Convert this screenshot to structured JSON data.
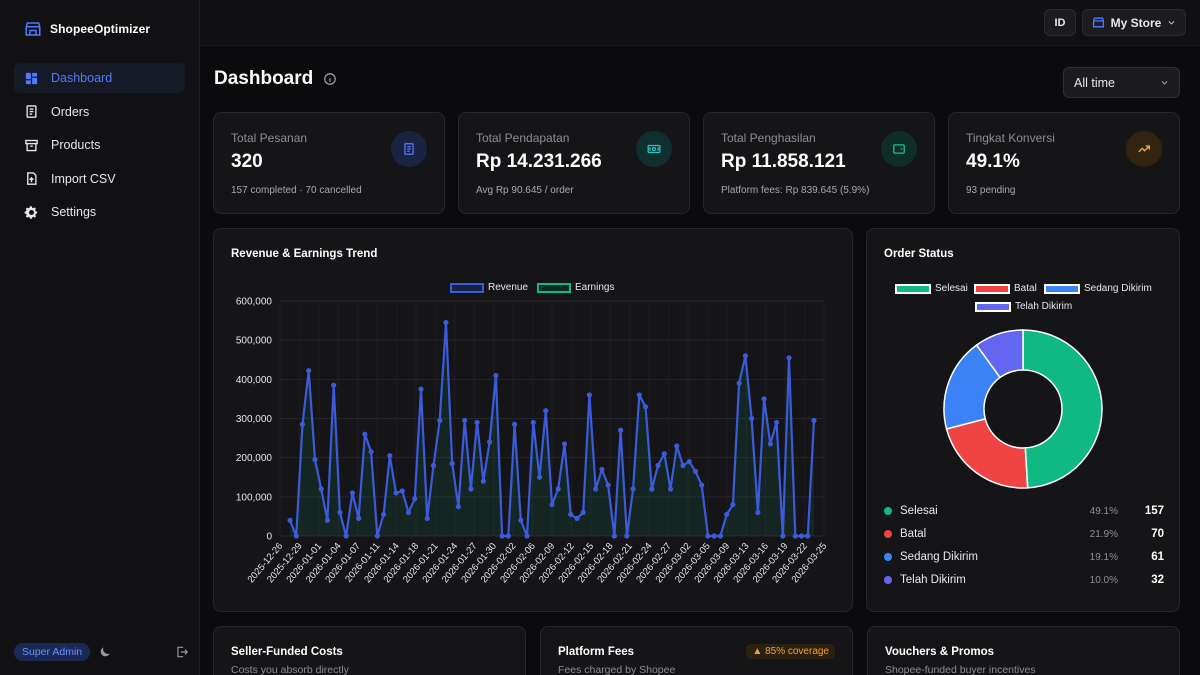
{
  "app": {
    "name": "ShopeeOptimizer"
  },
  "sidebar": {
    "items": [
      {
        "label": "Dashboard",
        "icon": "dashboard-icon",
        "active": true
      },
      {
        "label": "Orders",
        "icon": "orders-icon"
      },
      {
        "label": "Products",
        "icon": "products-icon"
      },
      {
        "label": "Import CSV",
        "icon": "import-icon"
      },
      {
        "label": "Settings",
        "icon": "gear-icon"
      }
    ],
    "role": "Super Admin"
  },
  "header": {
    "lang": "ID",
    "store": "My Store"
  },
  "page": {
    "title": "Dashboard",
    "range": "All time"
  },
  "stats": [
    {
      "label": "Total Pesanan",
      "value": "320",
      "sub": "157 completed · 70 cancelled",
      "icon": "receipt-icon",
      "color": "#4f7cff"
    },
    {
      "label": "Total Pendapatan",
      "value": "Rp 14.231.266",
      "sub": "Avg Rp 90.645 / order",
      "icon": "cash-icon",
      "color": "#1fc7c7"
    },
    {
      "label": "Total Penghasilan",
      "value": "Rp 11.858.121",
      "sub": "Platform fees: Rp 839.645 (5.9%)",
      "icon": "wallet-icon",
      "color": "#19c28b"
    },
    {
      "label": "Tingkat Konversi",
      "value": "49.1%",
      "sub": "93 pending",
      "icon": "trending-up-icon",
      "color": "#f0a23a"
    }
  ],
  "trend": {
    "title": "Revenue & Earnings Trend",
    "legend": [
      "Revenue",
      "Earnings"
    ]
  },
  "order_status": {
    "title": "Order Status",
    "legend": [
      "Selesai",
      "Batal",
      "Sedang Dikirim",
      "Telah Dikirim"
    ],
    "rows": [
      {
        "label": "Selesai",
        "pct": "49.1%",
        "count": "157",
        "color": "#10b981"
      },
      {
        "label": "Batal",
        "pct": "21.9%",
        "count": "70",
        "color": "#ef4444"
      },
      {
        "label": "Sedang Dikirim",
        "pct": "19.1%",
        "count": "61",
        "color": "#3b82f6"
      },
      {
        "label": "Telah Dikirim",
        "pct": "10.0%",
        "count": "32",
        "color": "#6366f1"
      }
    ]
  },
  "bottom": [
    {
      "title": "Seller-Funded Costs",
      "sub": "Costs you absorb directly"
    },
    {
      "title": "Platform Fees",
      "sub": "Fees charged by Shopee",
      "badge": "▲ 85% coverage"
    },
    {
      "title": "Vouchers & Promos",
      "sub": "Shopee-funded buyer incentives"
    }
  ],
  "chart_data": [
    {
      "type": "line",
      "title": "Revenue & Earnings Trend",
      "ylim": [
        0,
        600000
      ],
      "yticks": [
        "600,000",
        "500,000",
        "400,000",
        "300,000",
        "200,000",
        "100,000",
        "0"
      ],
      "xticks": [
        "2025-12-26",
        "2025-12-29",
        "2026-01-01",
        "2026-01-04",
        "2026-01-07",
        "2026-01-11",
        "2026-01-14",
        "2026-01-18",
        "2026-01-21",
        "2026-01-24",
        "2026-01-27",
        "2026-01-30",
        "2026-02-02",
        "2026-02-06",
        "2026-02-09",
        "2026-02-12",
        "2026-02-15",
        "2026-02-18",
        "2026-02-21",
        "2026-02-24",
        "2026-02-27",
        "2026-03-02",
        "2026-03-05",
        "2026-03-09",
        "2026-03-13",
        "2026-03-16",
        "2026-03-19",
        "2026-03-22",
        "2026-03-25"
      ],
      "series": [
        {
          "name": "Revenue",
          "color": "#3b5bdb",
          "values": [
            40000,
            0,
            285000,
            422000,
            195000,
            120000,
            40000,
            385000,
            60000,
            0,
            110000,
            45000,
            260000,
            215000,
            0,
            55000,
            205000,
            110000,
            115000,
            60000,
            95000,
            375000,
            45000,
            180000,
            295000,
            545000,
            185000,
            75000,
            295000,
            120000,
            290000,
            140000,
            240000,
            410000,
            0,
            0,
            285000,
            40000,
            0,
            290000,
            150000,
            320000,
            80000,
            120000,
            235000,
            55000,
            45000,
            60000,
            360000,
            120000,
            170000,
            130000,
            0,
            270000,
            0,
            120000,
            360000,
            330000,
            120000,
            180000,
            210000,
            120000,
            230000,
            180000,
            190000,
            165000,
            130000,
            0,
            0,
            0,
            55000,
            80000,
            390000,
            460000,
            300000,
            60000,
            350000,
            235000,
            290000,
            0,
            455000,
            0,
            0,
            0,
            295000
          ]
        },
        {
          "name": "Earnings",
          "color": "#10b981",
          "values": []
        }
      ]
    },
    {
      "type": "pie",
      "title": "Order Status",
      "categories": [
        "Selesai",
        "Batal",
        "Sedang Dikirim",
        "Telah Dikirim"
      ],
      "values": [
        157,
        70,
        61,
        32
      ],
      "colors": [
        "#10b981",
        "#ef4444",
        "#3b82f6",
        "#6366f1"
      ]
    }
  ]
}
